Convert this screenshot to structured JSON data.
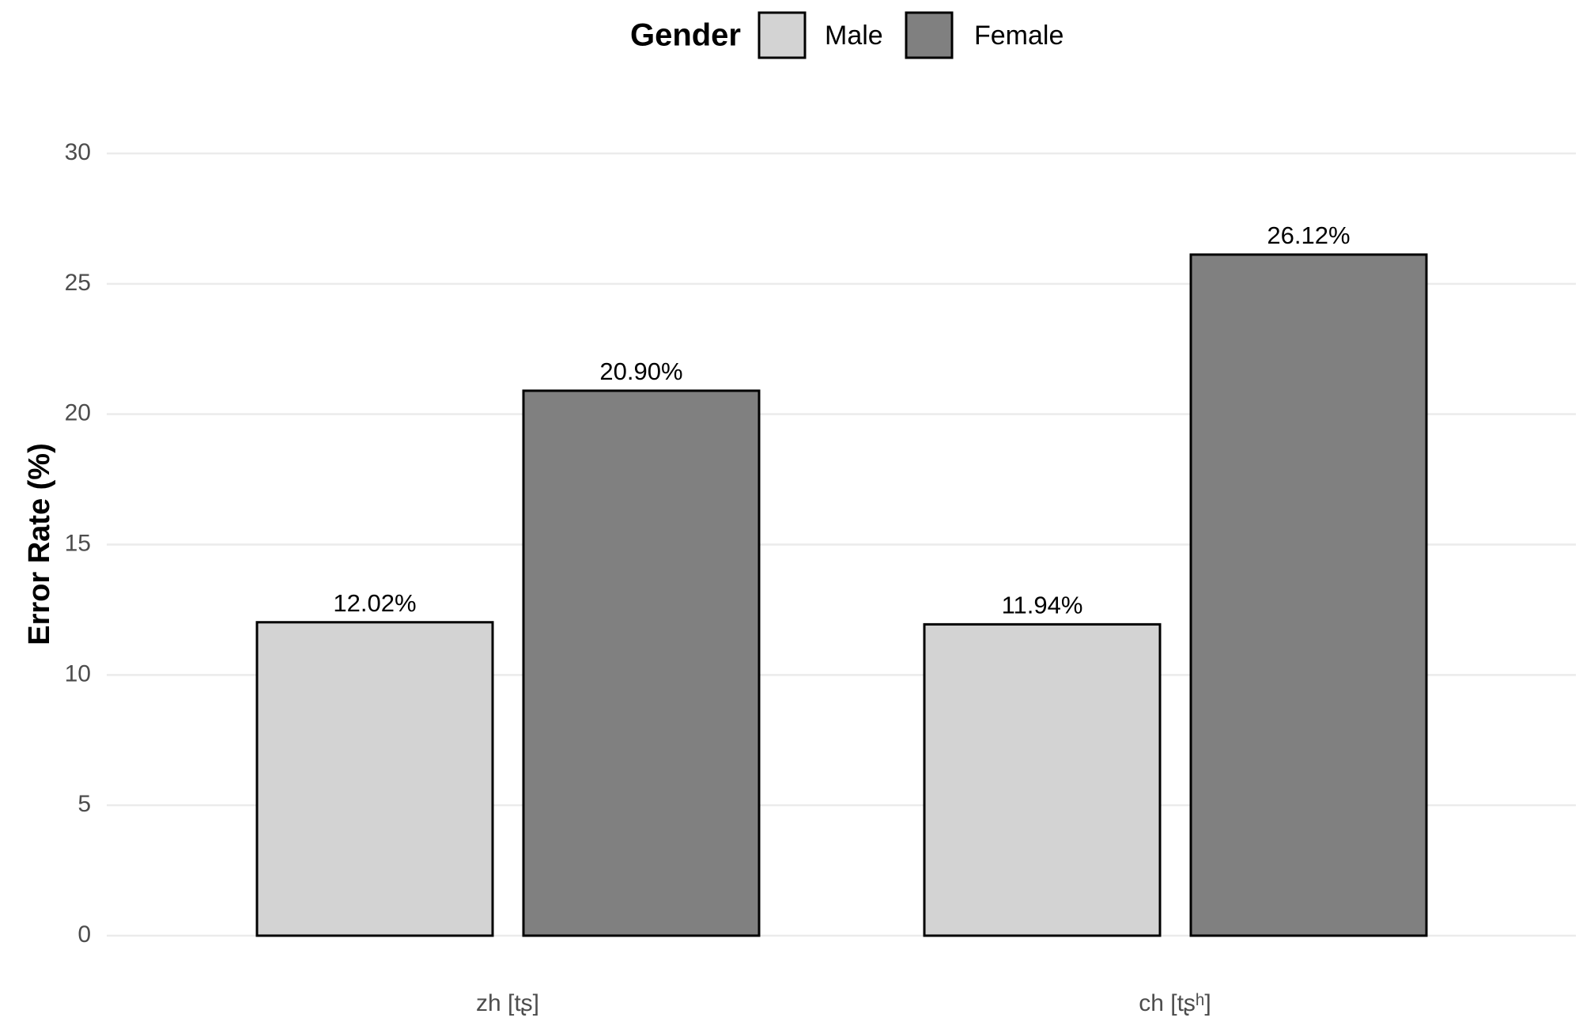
{
  "chart_data": {
    "type": "bar",
    "categories": [
      "zh [tʂ]",
      "ch [tʂʰ]"
    ],
    "series": [
      {
        "name": "Male",
        "color": "#d3d3d3",
        "values": [
          12.02,
          11.94
        ],
        "value_labels": [
          "12.02%",
          "11.94%"
        ]
      },
      {
        "name": "Female",
        "color": "#808080",
        "values": [
          20.9,
          26.12
        ],
        "value_labels": [
          "20.90%",
          "26.12%"
        ]
      }
    ],
    "ylabel": "Error Rate (%)",
    "legend_title": "Gender",
    "legend_position": "top",
    "ylim": [
      0,
      30
    ],
    "yticks": [
      0,
      5,
      10,
      15,
      20,
      25,
      30
    ],
    "grid": true
  }
}
